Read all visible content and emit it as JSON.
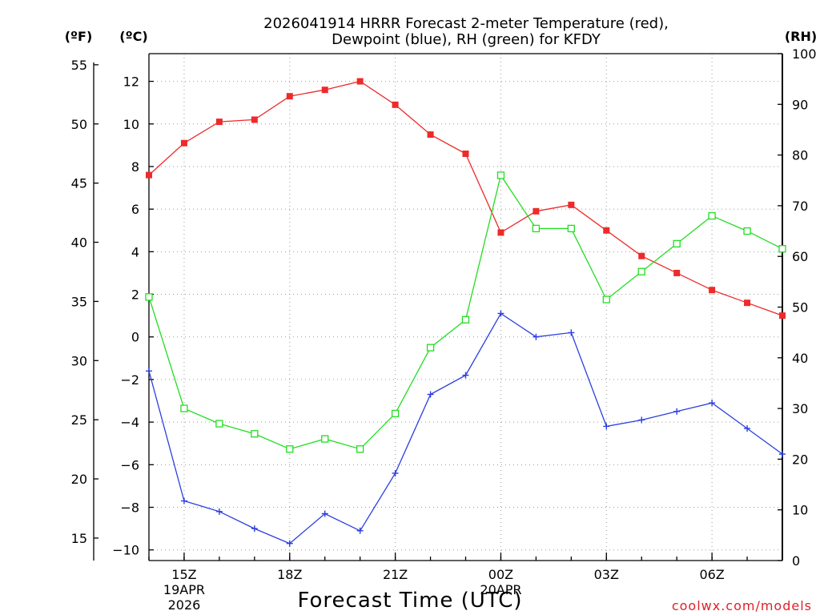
{
  "chart_data": {
    "type": "line",
    "title_line1": "2026041914 HRRR Forecast 2-meter Temperature (red),",
    "title_line2": "Dewpoint (blue), RH (green) for KFDY",
    "xlabel": "Forecast Time (UTC)",
    "credit": "coolwx.com/models",
    "units": {
      "fahrenheit": "(ºF)",
      "celsius": "(ºC)",
      "rh": "(RH)"
    },
    "hours": [
      0,
      1,
      2,
      3,
      4,
      5,
      6,
      7,
      8,
      9,
      10,
      11,
      12,
      13,
      14,
      15,
      16,
      17,
      18
    ],
    "xlim": [
      0,
      18
    ],
    "x_ticks": [
      {
        "hour": 1,
        "label": "15Z",
        "sub1": "19APR",
        "sub2": "2026"
      },
      {
        "hour": 4,
        "label": "18Z",
        "sub1": "",
        "sub2": ""
      },
      {
        "hour": 7,
        "label": "21Z",
        "sub1": "",
        "sub2": ""
      },
      {
        "hour": 10,
        "label": "00Z",
        "sub1": "20APR",
        "sub2": ""
      },
      {
        "hour": 13,
        "label": "03Z",
        "sub1": "",
        "sub2": ""
      },
      {
        "hour": 16,
        "label": "06Z",
        "sub1": "",
        "sub2": ""
      }
    ],
    "celsius_axis": {
      "min": -10.5,
      "max": 13.3,
      "ticks": [
        12,
        10,
        8,
        6,
        4,
        2,
        0,
        -2,
        -4,
        -6,
        -8,
        -10
      ]
    },
    "fahrenheit_axis": {
      "ticks": [
        55,
        50,
        45,
        40,
        35,
        30,
        25,
        20,
        15
      ]
    },
    "rh_axis": {
      "min": 0,
      "max": 100,
      "ticks": [
        100,
        90,
        80,
        70,
        60,
        50,
        40,
        30,
        20,
        10,
        0
      ]
    },
    "series": [
      {
        "name": "Temperature",
        "axis": "celsius",
        "color": "#ee2a2a",
        "marker": "filled-square",
        "values": [
          7.6,
          9.1,
          10.1,
          10.2,
          11.3,
          11.6,
          12.0,
          10.9,
          9.5,
          8.6,
          4.9,
          5.9,
          6.2,
          5.0,
          3.8,
          3.0,
          2.2,
          1.6,
          1.0
        ]
      },
      {
        "name": "Dewpoint",
        "axis": "celsius",
        "color": "#2b3fe0",
        "marker": "plus",
        "values": [
          -1.6,
          -7.7,
          -8.2,
          -9.0,
          -9.7,
          -8.3,
          -9.1,
          -6.4,
          -2.7,
          -1.8,
          1.1,
          0.0,
          0.2,
          -4.2,
          -3.9,
          -3.5,
          -3.1,
          -4.3,
          -5.5
        ]
      },
      {
        "name": "RH",
        "axis": "rh",
        "color": "#22dd22",
        "marker": "open-square",
        "values": [
          52,
          30,
          27,
          25,
          22,
          24,
          22,
          29,
          42,
          47.5,
          76,
          65.5,
          65.5,
          51.5,
          57,
          62.5,
          68,
          65,
          61.5
        ]
      }
    ]
  }
}
